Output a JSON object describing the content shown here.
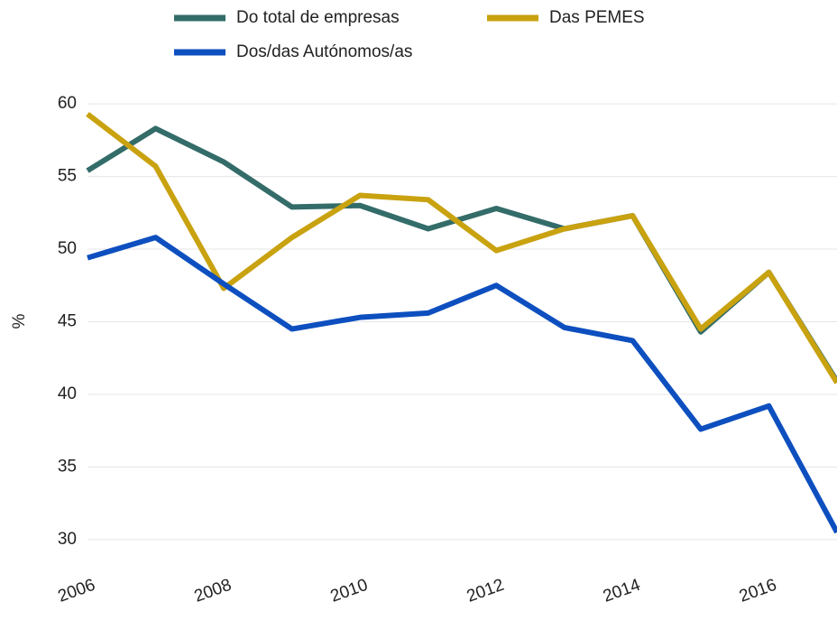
{
  "chart_data": {
    "type": "line",
    "y_label": "%",
    "x": [
      2006,
      2007,
      2008,
      2009,
      2010,
      2011,
      2012,
      2013,
      2014,
      2015,
      2016,
      2017
    ],
    "series": [
      {
        "name": "Do total de empresas",
        "color": "#336c69",
        "values": [
          55.4,
          58.3,
          56.0,
          52.9,
          53.0,
          51.4,
          52.8,
          51.4,
          52.3,
          44.3,
          48.4,
          40.9
        ]
      },
      {
        "name": "Das PEMES",
        "color": "#c9a210",
        "values": [
          59.3,
          55.7,
          47.3,
          50.8,
          53.7,
          53.4,
          49.9,
          51.4,
          52.3,
          44.5,
          48.4,
          40.8
        ]
      },
      {
        "name": "Dos/das Autónomos/as",
        "color": "#0d4fbf",
        "values": [
          49.4,
          50.8,
          47.6,
          44.5,
          45.3,
          45.6,
          47.5,
          44.6,
          43.7,
          37.6,
          39.2,
          30.5
        ]
      }
    ],
    "xlim": [
      2006,
      2017
    ],
    "xticks": [
      2006,
      2008,
      2010,
      2012,
      2014,
      2016
    ],
    "ylim": [
      29,
      61
    ],
    "yticks": [
      30,
      35,
      40,
      45,
      50,
      55,
      60
    ],
    "grid": true,
    "legend": "top"
  }
}
